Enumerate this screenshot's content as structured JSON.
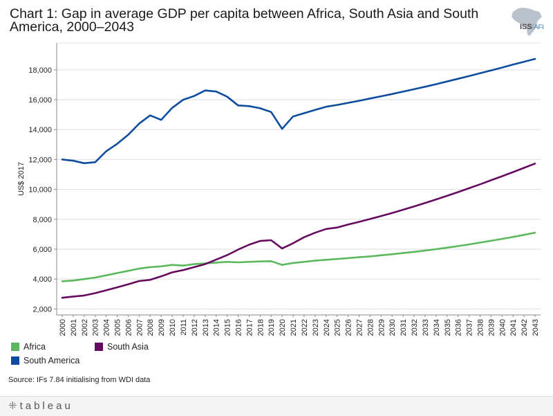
{
  "title": "Chart 1: Gap in average GDP per capita between Africa, South Asia and South America, 2000–2043",
  "logo": {
    "iss": "ISS",
    "afi": "AFI"
  },
  "source": "Source: IFs 7.84 initialising from WDI data",
  "footer": {
    "brand": "tableau"
  },
  "colors": {
    "africa": "#5cb85c",
    "south_asia": "#650a5e",
    "south_america": "#0d4c9e",
    "grid": "#dddddd",
    "axis": "#888888"
  },
  "chart_data": {
    "type": "line",
    "title": "Chart 1: Gap in average GDP per capita between Africa, South Asia and South America, 2000–2043",
    "xlabel": "",
    "ylabel": "US$ 2017",
    "ylim": [
      1600,
      19800
    ],
    "yticks": [
      2000,
      4000,
      6000,
      8000,
      10000,
      12000,
      14000,
      16000,
      18000
    ],
    "ytick_labels": [
      "2,000",
      "4,000",
      "6,000",
      "8,000",
      "10,000",
      "12,000",
      "14,000",
      "16,000",
      "18,000"
    ],
    "grid": true,
    "legend_position": "bottom-left",
    "x": [
      "2000",
      "2001",
      "2002",
      "2003",
      "2004",
      "2005",
      "2006",
      "2007",
      "2008",
      "2009",
      "2010",
      "2011",
      "2012",
      "2013",
      "2014",
      "2015",
      "2016",
      "2017",
      "2018",
      "2019",
      "2020",
      "2021",
      "2022",
      "2023",
      "2024",
      "2025",
      "2026",
      "2027",
      "2028",
      "2029",
      "2030",
      "2031",
      "2032",
      "2033",
      "2034",
      "2035",
      "2036",
      "2037",
      "2038",
      "2039",
      "2040",
      "2041",
      "2042",
      "2043"
    ],
    "series": [
      {
        "name": "Africa",
        "color": "#5cb85c",
        "values": [
          3850,
          3900,
          4000,
          4100,
          4250,
          4400,
          4550,
          4700,
          4800,
          4850,
          4950,
          4900,
          5000,
          5050,
          5100,
          5150,
          5120,
          5150,
          5180,
          5200,
          4950,
          5080,
          5150,
          5230,
          5290,
          5340,
          5400,
          5460,
          5520,
          5590,
          5660,
          5740,
          5820,
          5910,
          6000,
          6100,
          6210,
          6320,
          6440,
          6560,
          6690,
          6820,
          6960,
          7100
        ]
      },
      {
        "name": "South Asia",
        "color": "#650a5e",
        "values": [
          2750,
          2830,
          2900,
          3060,
          3250,
          3450,
          3650,
          3870,
          3950,
          4180,
          4450,
          4600,
          4800,
          5000,
          5300,
          5600,
          5970,
          6300,
          6550,
          6600,
          6050,
          6400,
          6800,
          7100,
          7350,
          7450,
          7650,
          7830,
          8020,
          8220,
          8420,
          8640,
          8860,
          9090,
          9330,
          9570,
          9820,
          10080,
          10340,
          10610,
          10880,
          11160,
          11440,
          11730
        ]
      },
      {
        "name": "South America",
        "color": "#0d4c9e",
        "values": [
          12000,
          11920,
          11750,
          11820,
          12550,
          13050,
          13650,
          14400,
          14950,
          14650,
          15450,
          16000,
          16250,
          16620,
          16550,
          16200,
          15620,
          15570,
          15430,
          15180,
          14050,
          14880,
          15100,
          15320,
          15530,
          15650,
          15790,
          15930,
          16080,
          16230,
          16380,
          16540,
          16700,
          16870,
          17040,
          17220,
          17400,
          17580,
          17770,
          17960,
          18150,
          18350,
          18540,
          18730
        ]
      }
    ]
  }
}
